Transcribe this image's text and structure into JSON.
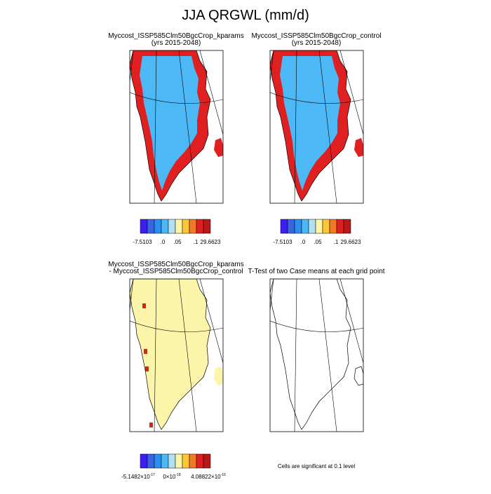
{
  "title": "JJA QRGWL (mm/d)",
  "colorbar_colors": [
    "#3c1ef0",
    "#3b64e0",
    "#2c8ff0",
    "#4cb8f5",
    "#b0e0f5",
    "#fcf4a8",
    "#f8c83a",
    "#f07a28",
    "#e02020",
    "#b81818"
  ],
  "panels": [
    {
      "title": [
        "Myccost_ISSP585Clm50BgcCrop_kparams",
        "(yrs 2015-2048)"
      ],
      "colorbar_labels": [
        "-7.5103",
        ".0",
        ".05",
        ".1",
        "29.6623"
      ]
    },
    {
      "title": [
        "Myccost_ISSP585Clm50BgcCrop_control",
        "(yrs 2015-2048)"
      ],
      "colorbar_labels": [
        "-7.5103",
        ".0",
        ".05",
        ".1",
        "29.6623"
      ]
    },
    {
      "title": [
        "Myccost_ISSP585Clm50BgcCrop_kparams",
        "- Myccost_ISSP585Clm50BgcCrop_control"
      ],
      "colorbar_labels": [
        {
          "base": "-5.1482×10",
          "exp": "-17"
        },
        {
          "base": "0×10",
          "exp": "-18"
        },
        {
          "base": "4.08822×10",
          "exp": "-16"
        }
      ]
    },
    {
      "title": [
        "T-Test of two Case means at each grid point"
      ],
      "note": "Cells are significant at 0.1 level"
    }
  ]
}
